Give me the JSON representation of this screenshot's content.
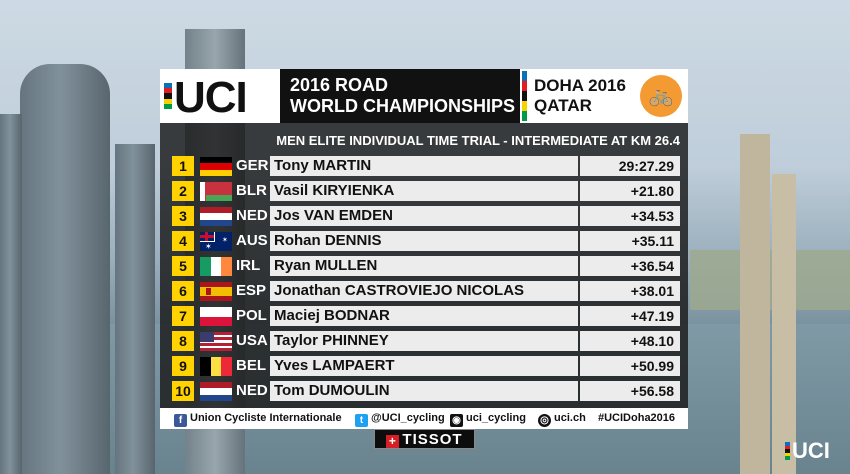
{
  "header": {
    "org_logo": "UCI",
    "title_line1": "2016 ROAD",
    "title_line2": "WORLD CHAMPIONSHIPS",
    "venue_line1": "DOHA 2016",
    "venue_line2": "QATAR"
  },
  "colors": {
    "rainbow": [
      "#0b71b6",
      "#e31b23",
      "#111111",
      "#f6d200",
      "#009b48"
    ],
    "rank_badge": "#ffd200",
    "panel": "#1a1a1a",
    "row_bg": "#ececec"
  },
  "subtitle": "MEN ELITE INDIVIDUAL TIME TRIAL - INTERMEDIATE AT KM 26.4",
  "results": [
    {
      "rank": "1",
      "nation": "GER",
      "flag": "flag-germany",
      "name": "Tony MARTIN",
      "time": "29:27.29"
    },
    {
      "rank": "2",
      "nation": "BLR",
      "flag": "flag-belarus",
      "name": "Vasil KIRYIENKA",
      "time": "+21.80"
    },
    {
      "rank": "3",
      "nation": "NED",
      "flag": "flag-netherlands",
      "name": "Jos VAN EMDEN",
      "time": "+34.53"
    },
    {
      "rank": "4",
      "nation": "AUS",
      "flag": "flag-australia",
      "name": "Rohan DENNIS",
      "time": "+35.11"
    },
    {
      "rank": "5",
      "nation": "IRL",
      "flag": "flag-ireland",
      "name": "Ryan MULLEN",
      "time": "+36.54"
    },
    {
      "rank": "6",
      "nation": "ESP",
      "flag": "flag-spain",
      "name": "Jonathan CASTROVIEJO NICOLAS",
      "time": "+38.01"
    },
    {
      "rank": "7",
      "nation": "POL",
      "flag": "flag-poland",
      "name": "Maciej BODNAR",
      "time": "+47.19"
    },
    {
      "rank": "8",
      "nation": "USA",
      "flag": "flag-usa",
      "name": "Taylor PHINNEY",
      "time": "+48.10"
    },
    {
      "rank": "9",
      "nation": "BEL",
      "flag": "flag-belgium",
      "name": "Yves LAMPAERT",
      "time": "+50.99"
    },
    {
      "rank": "10",
      "nation": "NED",
      "flag": "flag-netherlands",
      "name": "Tom DUMOULIN",
      "time": "+56.58"
    }
  ],
  "footer": {
    "facebook": "Union Cycliste Internationale",
    "twitter": "@UCI_cycling",
    "instagram": "uci_cycling",
    "website": "uci.ch",
    "hashtag": "#UCIDoha2016"
  },
  "sponsor": "TISSOT",
  "corner_logo": "UCI"
}
